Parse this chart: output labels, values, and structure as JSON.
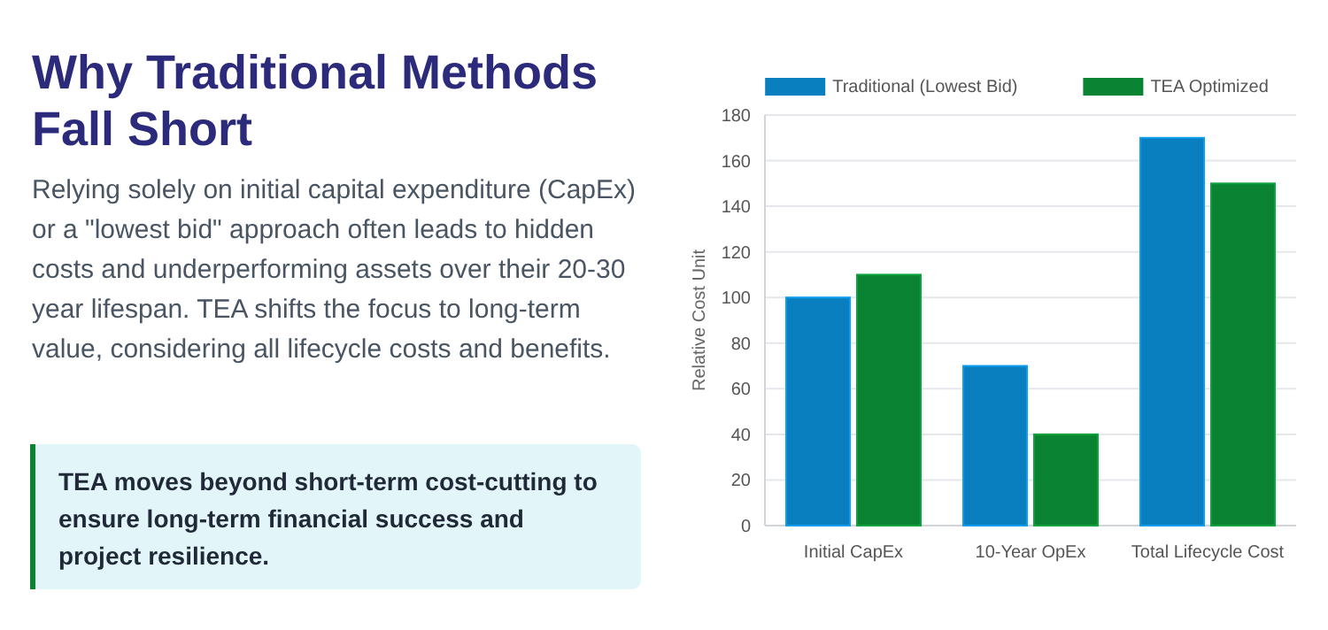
{
  "chart_data": {
    "type": "bar",
    "title": "Why Traditional Methods Fall Short",
    "subtitle": "Relying solely on initial capital expenditure (CapEx) or a \"lowest bid\" approach often leads to hidden costs and underperforming assets over their 20-30 year lifespan. TEA shifts the focus to long-term value, considering all lifecycle costs and benefits.",
    "annotations": [
      "TEA moves beyond short-term cost-cutting to ensure long-term financial success and project resilience."
    ],
    "ylabel": "Relative Cost Unit",
    "categories": [
      "Initial CapEx",
      "10-Year OpEx",
      "Total Lifecycle Cost"
    ],
    "series": [
      {
        "name": "Traditional (Lowest Bid)",
        "color": "#0a7fc0",
        "values": [
          100,
          70,
          170
        ]
      },
      {
        "name": "TEA Optimized",
        "color": "#0a8432",
        "values": [
          110,
          40,
          150
        ]
      }
    ],
    "ylim": [
      0,
      180
    ],
    "yticks": [
      0,
      20,
      40,
      60,
      80,
      100,
      120,
      140,
      160,
      180
    ],
    "grid": "y",
    "legend": "top"
  }
}
